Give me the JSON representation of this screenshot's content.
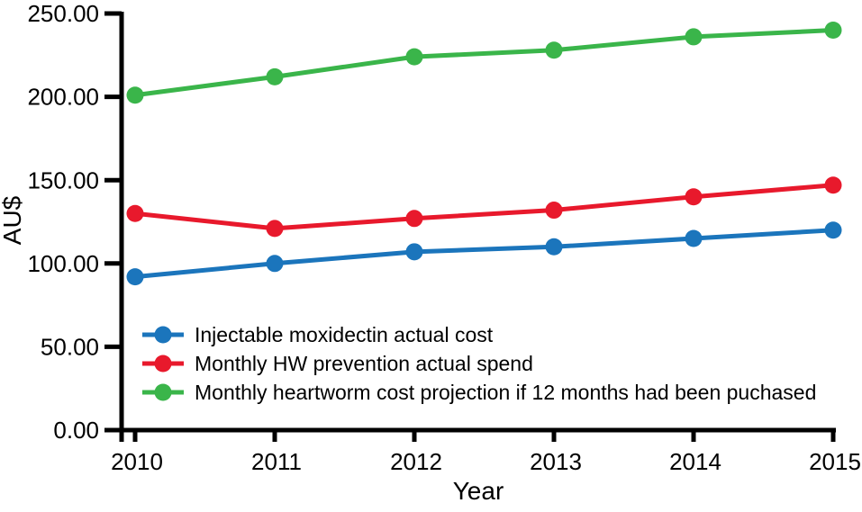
{
  "figure": {
    "background": "#ffffff",
    "axis_color": "#000000"
  },
  "chart_data": {
    "type": "line",
    "title": "",
    "xlabel": "Year",
    "ylabel": "AU$",
    "x": [
      2010,
      2011,
      2012,
      2013,
      2014,
      2015
    ],
    "x_tick_labels": [
      "2010",
      "2011",
      "2012",
      "2013",
      "2014",
      "2015"
    ],
    "y_tick_values": [
      0,
      50,
      100,
      150,
      200,
      250
    ],
    "y_tick_labels": [
      "0.00",
      "50.00",
      "100.00",
      "150.00",
      "200.00",
      "250.00"
    ],
    "ylim": [
      0,
      250
    ],
    "grid": false,
    "legend_position": "inside-bottom-left",
    "marker": "circle",
    "series": [
      {
        "name": "Injectable moxidectin actual cost",
        "color": "#1b75bc",
        "values": [
          92,
          100,
          107,
          110,
          115,
          120
        ]
      },
      {
        "name": "Monthly HW prevention actual spend",
        "color": "#e8192c",
        "values": [
          130,
          121,
          127,
          132,
          140,
          147
        ]
      },
      {
        "name": "Monthly heartworm cost projection if 12 months had been puchased",
        "color": "#3ab54a",
        "values": [
          201,
          212,
          224,
          228,
          236,
          240
        ]
      }
    ]
  }
}
